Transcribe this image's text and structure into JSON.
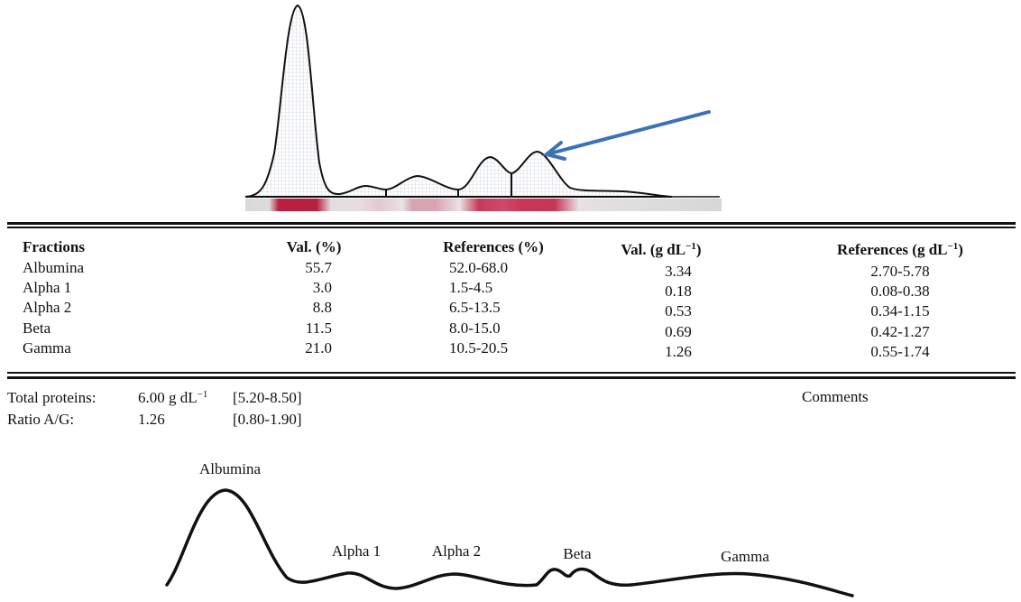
{
  "table": {
    "headers": {
      "fractions": "Fractions",
      "val_pct": "Val. (%)",
      "ref_pct": "References (%)",
      "val_g": "Val. (g dL",
      "ref_g": "References (g dL",
      "unit_exp": "−1",
      "close": ")"
    },
    "rows": [
      {
        "fraction": "Albumina",
        "val_pct": "55.7",
        "ref_pct": "52.0-68.0",
        "val_g": "3.34",
        "ref_g": "2.70-5.78"
      },
      {
        "fraction": "Alpha 1",
        "val_pct": "3.0",
        "ref_pct": "1.5-4.5",
        "val_g": "0.18",
        "ref_g": "0.08-0.38"
      },
      {
        "fraction": "Alpha 2",
        "val_pct": "8.8",
        "ref_pct": "6.5-13.5",
        "val_g": "0.53",
        "ref_g": "0.34-1.15"
      },
      {
        "fraction": "Beta",
        "val_pct": "11.5",
        "ref_pct": "8.0-15.0",
        "val_g": "0.69",
        "ref_g": "0.42-1.27"
      },
      {
        "fraction": "Gamma",
        "val_pct": "21.0",
        "ref_pct": "10.5-20.5",
        "val_g": "1.26",
        "ref_g": "0.55-1.74"
      }
    ]
  },
  "summary": {
    "total_label": "Total proteins:",
    "total_value": "6.00 g dL",
    "total_exp": "−1",
    "total_ref": "[5.20-8.50]",
    "ratio_label": "Ratio A/G:",
    "ratio_value": "1.26",
    "ratio_ref": "[0.80-1.90]",
    "comments_label": "Comments"
  },
  "sketch_labels": {
    "albumina": "Albumina",
    "alpha1": "Alpha 1",
    "alpha2": "Alpha 2",
    "beta": "Beta",
    "gamma": "Gamma"
  },
  "colors": {
    "arrow": "#3b73b6",
    "band": "#c0284a",
    "strip": "#d8d8da"
  }
}
